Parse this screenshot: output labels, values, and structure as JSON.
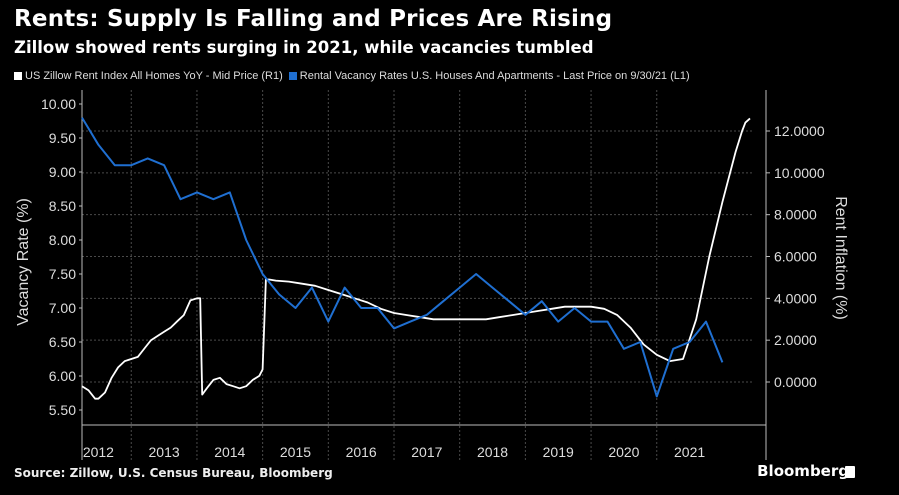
{
  "header": {
    "title": "Rents: Supply Is Falling and Prices Are Rising",
    "subtitle": "Zillow showed rents surging in 2021, while vacancies tumbled"
  },
  "footer": {
    "source": "Source: Zillow, U.S. Census Bureau, Bloomberg",
    "brand": "Bloomberg"
  },
  "colors": {
    "background": "#000000",
    "rent_line": "#ffffff",
    "vacancy_line": "#1f6fd1",
    "grid": "#555555"
  },
  "chart_data": {
    "type": "line",
    "legend_position": "top",
    "grid": true,
    "ylabel_left": "Vacancy Rate (%)",
    "ylabel_right": "Rent Inflation (%)",
    "ylim_left": [
      5.5,
      10.0
    ],
    "ylim_right": [
      -2,
      14
    ],
    "xlim": [
      2011.75,
      2021.95
    ],
    "x_ticks": [
      "2012",
      "2013",
      "2014",
      "2015",
      "2016",
      "2017",
      "2018",
      "2019",
      "2020",
      "2021"
    ],
    "left_ticks": [
      "10.00",
      "9.50",
      "9.00",
      "8.50",
      "8.00",
      "7.50",
      "7.00",
      "6.50",
      "6.00",
      "5.50"
    ],
    "right_ticks": [
      "12.0000",
      "10.0000",
      "8.0000",
      "6.0000",
      "4.0000",
      "2.0000",
      "0.0000"
    ],
    "series": [
      {
        "name": "US Zillow Rent Index All Homes YoY - Mid Price (R1)",
        "axis": "right",
        "color": "#ffffff",
        "x": [
          2011.75,
          2011.85,
          2011.95,
          2012.0,
          2012.1,
          2012.2,
          2012.3,
          2012.4,
          2012.5,
          2012.6,
          2012.7,
          2012.8,
          2012.9,
          2013.0,
          2013.1,
          2013.2,
          2013.3,
          2013.4,
          2013.5,
          2013.55,
          2013.58,
          2013.65,
          2013.75,
          2013.85,
          2013.95,
          2014.05,
          2014.15,
          2014.25,
          2014.35,
          2014.45,
          2014.5,
          2014.55,
          2014.6,
          2014.7,
          2014.9,
          2015.1,
          2015.3,
          2015.5,
          2015.7,
          2015.9,
          2016.1,
          2016.3,
          2016.5,
          2016.7,
          2016.9,
          2017.1,
          2017.3,
          2017.5,
          2017.7,
          2017.9,
          2018.1,
          2018.3,
          2018.5,
          2018.7,
          2018.9,
          2019.1,
          2019.3,
          2019.5,
          2019.7,
          2019.9,
          2020.1,
          2020.3,
          2020.5,
          2020.7,
          2020.9,
          2021.1,
          2021.3,
          2021.5,
          2021.7,
          2021.8,
          2021.85,
          2021.92
        ],
        "values": [
          -0.2,
          -0.4,
          -0.8,
          -0.8,
          -0.5,
          0.2,
          0.7,
          1.0,
          1.1,
          1.2,
          1.6,
          2.0,
          2.2,
          2.4,
          2.6,
          2.9,
          3.2,
          3.9,
          4.0,
          4.0,
          -0.6,
          -0.3,
          0.1,
          0.2,
          -0.1,
          -0.2,
          -0.3,
          -0.2,
          0.1,
          0.3,
          0.6,
          4.9,
          4.9,
          4.85,
          4.8,
          4.7,
          4.6,
          4.4,
          4.2,
          4.0,
          3.8,
          3.5,
          3.3,
          3.2,
          3.1,
          3.0,
          3.0,
          3.0,
          3.0,
          3.0,
          3.1,
          3.2,
          3.3,
          3.4,
          3.5,
          3.6,
          3.6,
          3.6,
          3.5,
          3.2,
          2.6,
          1.8,
          1.3,
          1.0,
          1.1,
          3.0,
          6.0,
          8.6,
          11.0,
          12.0,
          12.4,
          12.6
        ]
      },
      {
        "name": "Rental Vacancy Rates U.S. Houses And Apartments - Last Price on 9/30/21 (L1)",
        "axis": "left",
        "color": "#1f6fd1",
        "x": [
          2011.75,
          2012.0,
          2012.25,
          2012.5,
          2012.75,
          2013.0,
          2013.25,
          2013.5,
          2013.75,
          2014.0,
          2014.25,
          2014.5,
          2014.75,
          2015.0,
          2015.25,
          2015.5,
          2015.75,
          2016.0,
          2016.25,
          2016.5,
          2016.75,
          2017.0,
          2017.25,
          2017.5,
          2017.75,
          2018.0,
          2018.25,
          2018.5,
          2018.75,
          2019.0,
          2019.25,
          2019.5,
          2019.75,
          2020.0,
          2020.25,
          2020.5,
          2020.75,
          2021.0,
          2021.25,
          2021.5
        ],
        "values": [
          9.8,
          9.4,
          9.1,
          9.1,
          9.2,
          9.1,
          8.6,
          8.7,
          8.6,
          8.7,
          8.0,
          7.5,
          7.2,
          7.0,
          7.3,
          6.8,
          7.3,
          7.0,
          7.0,
          6.7,
          6.8,
          6.9,
          7.1,
          7.3,
          7.5,
          7.3,
          7.1,
          6.9,
          7.1,
          6.8,
          7.0,
          6.8,
          6.8,
          6.4,
          6.5,
          5.7,
          6.4,
          6.5,
          6.8,
          6.2
        ]
      }
    ]
  }
}
